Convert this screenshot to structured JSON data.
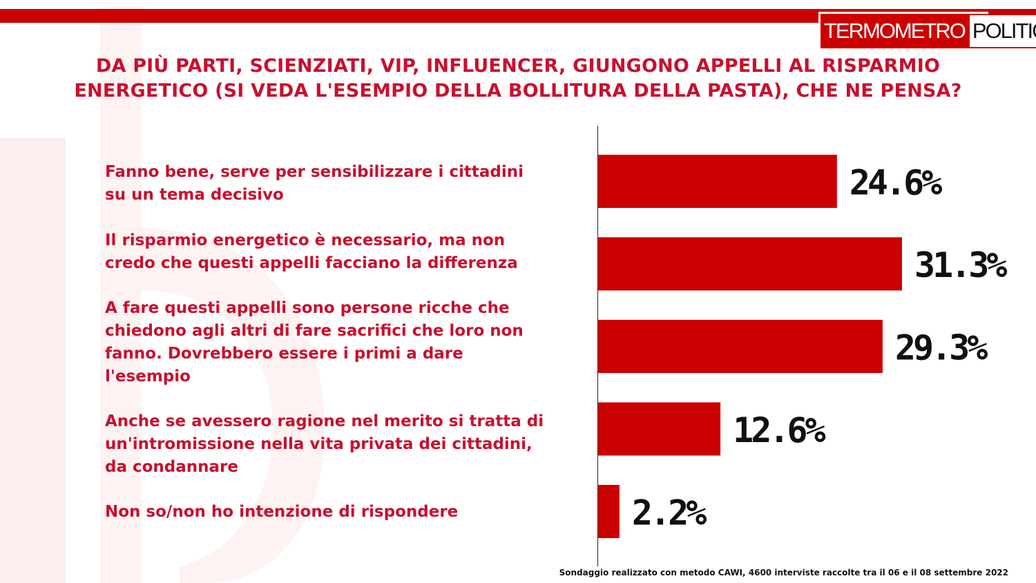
{
  "brand": {
    "logo_left": "TERMOMETRO",
    "logo_right": "POLITICO",
    "accent_color": "#cc0000",
    "text_color": "#c8102e"
  },
  "title_lines": [
    "DA PIÙ PARTI, SCIENZIATI, VIP, INFLUENCER, GIUNGONO APPELLI AL RISPARMIO",
    "ENERGETICO (SI VEDA L'ESEMPIO DELLA BOLLITURA DELLA PASTA), CHE NE PENSA?"
  ],
  "chart_data": {
    "type": "bar",
    "orientation": "horizontal",
    "title": "DA PIÙ PARTI, SCIENZIATI, VIP, INFLUENCER, GIUNGONO APPELLI AL RISPARMIO ENERGETICO (SI VEDA L'ESEMPIO DELLA BOLLITURA DELLA PASTA), CHE NE PENSA?",
    "categories": [
      "Fanno bene, serve per sensibilizzare i cittadini su un tema decisivo",
      "Il risparmio energetico è necessario, ma non credo che questi appelli facciano la differenza",
      "A fare questi appelli sono persone ricche che chiedono agli altri di fare sacrifici che loro non fanno. Dovrebbero essere i primi a dare l'esempio",
      "Anche se avessero ragione nel merito si tratta di un'intromissione nella vita privata dei cittadini, da condannare",
      "Non so/non ho intenzione di rispondere"
    ],
    "values": [
      24.6,
      31.3,
      29.3,
      12.6,
      2.2
    ],
    "value_labels": [
      "24.6%",
      "31.3%",
      "29.3%",
      "12.6%",
      "2.2%"
    ],
    "unit": "%",
    "xlim": [
      0,
      31.3
    ],
    "bar_color": "#cc0000",
    "grid": false,
    "legend": "none"
  },
  "answer_lines": [
    [
      "Fanno bene, serve per sensibilizzare i cittadini",
      "su un tema decisivo"
    ],
    [
      "Il risparmio energetico è necessario, ma non",
      "credo che questi appelli facciano la differenza"
    ],
    [
      "A fare questi appelli sono persone ricche che",
      "chiedono agli altri di fare sacrifici che loro non",
      "fanno. Dovrebbero essere i primi a dare",
      "l'esempio"
    ],
    [
      "Anche se avessero ragione nel merito si tratta di",
      "un'intromissione nella vita privata dei cittadini,",
      "da condannare"
    ],
    [
      "Non so/non ho intenzione di rispondere"
    ]
  ],
  "footnote": "Sondaggio realizzato con metodo CAWI, 4600 interviste raccolte tra il 06 e il 08 settembre 2022"
}
